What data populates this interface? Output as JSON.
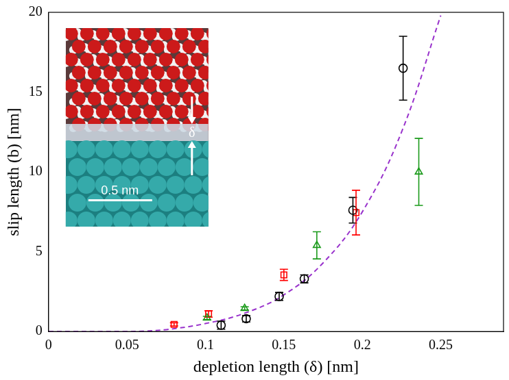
{
  "chart_data": {
    "type": "scatter",
    "x_label": "depletion length (δ) [nm]",
    "y_label": "slip length (b) [nm]",
    "xlim": [
      0,
      0.29
    ],
    "xticks": [
      0,
      0.05,
      0.1,
      0.15,
      0.2,
      0.25
    ],
    "ylim": [
      0,
      20
    ],
    "yticks": [
      0,
      5,
      10,
      15,
      20
    ],
    "grid": false,
    "series": [
      {
        "color": "#000000",
        "marker": "circle",
        "x": [
          0.11,
          0.126,
          0.147,
          0.163,
          0.194,
          0.226
        ],
        "values": [
          0.4,
          0.8,
          2.2,
          3.3,
          7.6,
          16.5
        ],
        "errors": [
          0.25,
          0.2,
          0.25,
          0.25,
          0.8,
          2.0
        ]
      },
      {
        "color": "#ff0000",
        "marker": "square",
        "x": [
          0.08,
          0.102,
          0.15,
          0.196
        ],
        "values": [
          0.45,
          1.1,
          3.55,
          7.45
        ],
        "errors": [
          0.1,
          0.2,
          0.35,
          1.4
        ]
      },
      {
        "color": "#1a9a1a",
        "marker": "triangle",
        "x": [
          0.101,
          0.125,
          0.171,
          0.236
        ],
        "values": [
          0.85,
          1.45,
          5.4,
          10.0
        ],
        "errors": [
          0.1,
          0.1,
          0.85,
          2.1
        ]
      },
      {
        "type": "line",
        "line_style": "dashed",
        "color": "#9933cc",
        "x": [
          0,
          0.05,
          0.06,
          0.075,
          0.1,
          0.125,
          0.15,
          0.175,
          0.2,
          0.225,
          0.25
        ],
        "values": [
          0,
          0,
          0.02,
          0.12,
          0.5,
          1.15,
          2.3,
          4.3,
          7.5,
          12.5,
          19.8
        ]
      }
    ],
    "annotations": [
      "δ",
      "0.5 nm"
    ]
  }
}
